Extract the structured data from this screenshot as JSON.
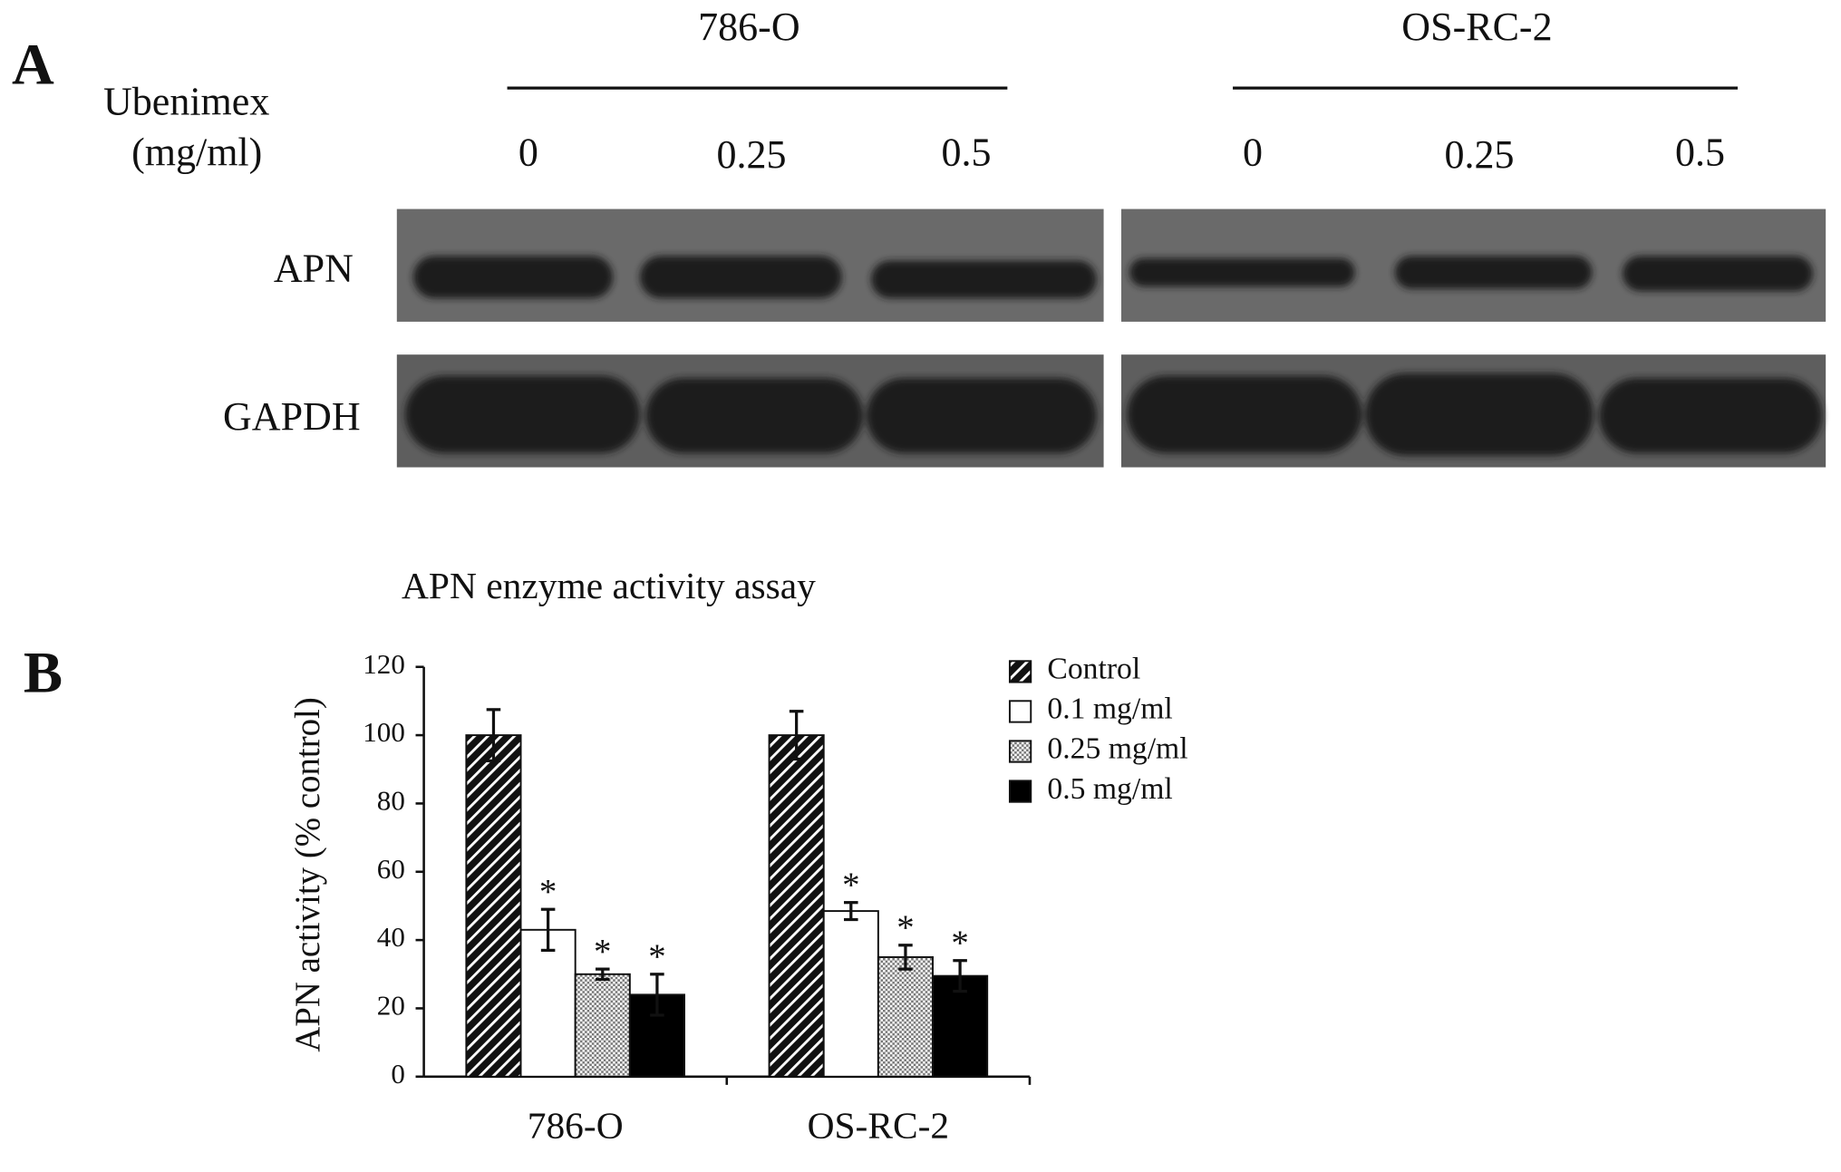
{
  "panel_labels": [
    "A",
    "B"
  ],
  "blot": {
    "treatment_label": "Ubenimex",
    "unit_label": "(mg/ml)",
    "cell_lines": [
      {
        "name": "786-O",
        "doses": [
          "0",
          "0.25",
          "0.5"
        ]
      },
      {
        "name": "OS-RC-2",
        "doses": [
          "0",
          "0.25",
          "0.5"
        ]
      }
    ],
    "proteins": [
      "APN",
      "GAPDH"
    ]
  },
  "chart_data": {
    "type": "bar",
    "title": "APN enzyme activity assay",
    "y_label": "APN activity (% control)",
    "categories": [
      "786-O",
      "OS-RC-2"
    ],
    "series": [
      {
        "name": "Control",
        "color": "#111111",
        "pattern": "hatch",
        "values": [
          100,
          100
        ],
        "errors": [
          7.5,
          7
        ]
      },
      {
        "name": "0.1 mg/ml",
        "color": "#ffffff",
        "pattern": "none",
        "values": [
          43,
          48.5
        ],
        "errors": [
          6,
          2.5
        ],
        "annotations": [
          "*",
          "*"
        ]
      },
      {
        "name": "0.25 mg/ml",
        "color": "#9a9a9a",
        "pattern": "dots",
        "values": [
          30,
          35
        ],
        "errors": [
          1.5,
          3.5
        ],
        "annotations": [
          "*",
          "*"
        ]
      },
      {
        "name": "0.5 mg/ml",
        "color": "#000000",
        "pattern": "none",
        "values": [
          24,
          29.5
        ],
        "errors": [
          6,
          4.5
        ],
        "annotations": [
          "*",
          "*"
        ]
      }
    ],
    "ylim": [
      0,
      120
    ],
    "yticks": [
      0,
      20,
      40,
      60,
      80,
      100,
      120
    ],
    "grid": false,
    "legend": "top-right"
  }
}
